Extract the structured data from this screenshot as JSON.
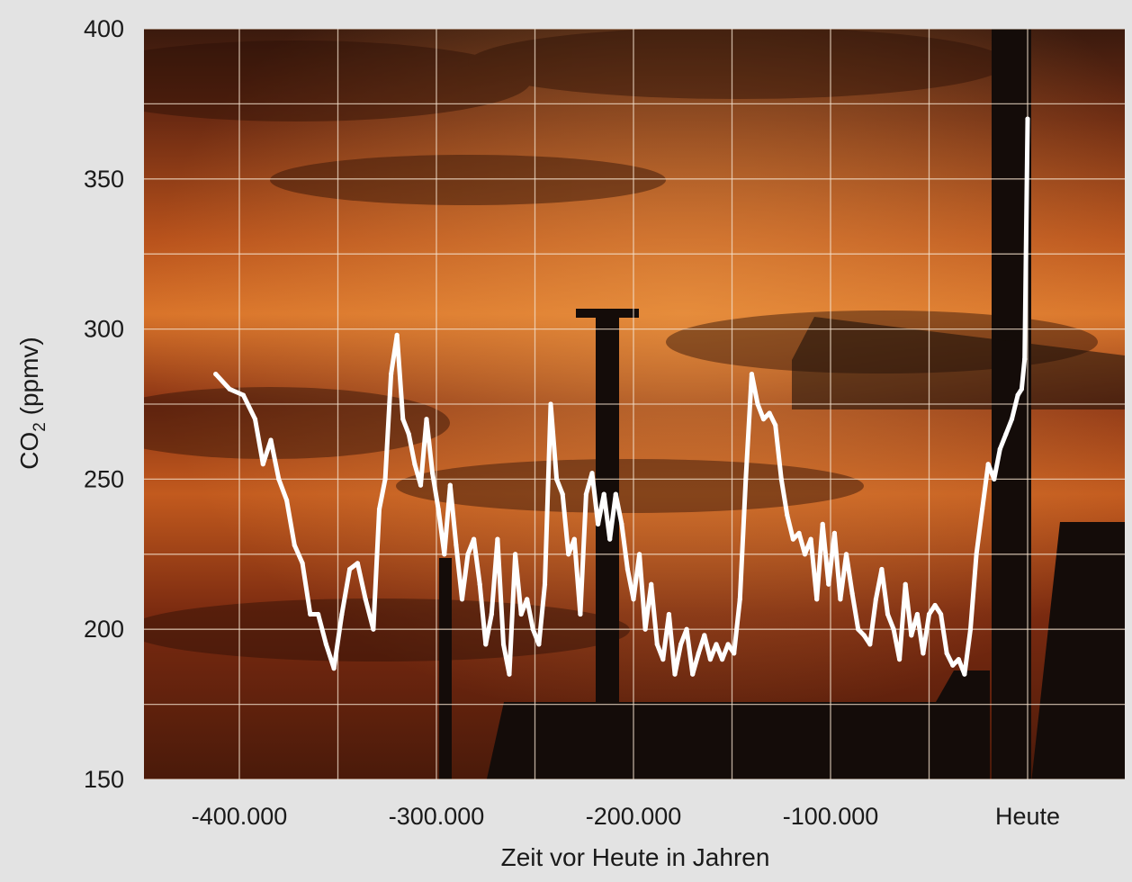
{
  "chart_data": {
    "type": "line",
    "xlabel": "Zeit vor Heute in Jahren",
    "ylabel": "CO2 (ppmv)",
    "ylabel_main": "CO",
    "ylabel_sub": "2",
    "ylabel_unit": " (ppmv)",
    "xlim": [
      -450000,
      40000
    ],
    "ylim": [
      150,
      400
    ],
    "grid": true,
    "x_ticks": [
      {
        "value": -400000,
        "label": "-400.000"
      },
      {
        "value": -300000,
        "label": "-300.000"
      },
      {
        "value": -200000,
        "label": "-200.000"
      },
      {
        "value": -100000,
        "label": "-100.000"
      },
      {
        "value": 0,
        "label": "Heute"
      }
    ],
    "y_ticks": [
      {
        "value": 150,
        "label": "150"
      },
      {
        "value": 200,
        "label": "200"
      },
      {
        "value": 250,
        "label": "250"
      },
      {
        "value": 300,
        "label": "300"
      },
      {
        "value": 350,
        "label": "350"
      },
      {
        "value": 400,
        "label": "400"
      }
    ],
    "colors": {
      "line": "#ffffff",
      "sky_dark": "#2a1208",
      "sky_mid": "#8e2e12",
      "sky_bright": "#d66a24",
      "silhouette": "#140c09",
      "grid": "#f3e0cc"
    },
    "series": [
      {
        "x": [
          -412000,
          -405000,
          -398000,
          -392000,
          -388000,
          -384000,
          -380000,
          -376000,
          -372000,
          -368000,
          -364000,
          -360000,
          -356000,
          -352000,
          -348000,
          -344000,
          -340000,
          -336000,
          -332000,
          -329000,
          -326000,
          -323000,
          -320000,
          -317000,
          -314000,
          -311000,
          -308000,
          -305000,
          -302000,
          -299000,
          -296000,
          -293000,
          -290000,
          -287000,
          -284000,
          -281000,
          -278000,
          -275000,
          -272000,
          -269000,
          -266000,
          -263000,
          -260000,
          -257000,
          -254000,
          -251000,
          -248000,
          -245000,
          -242000,
          -239000,
          -236000,
          -233000,
          -230000,
          -227000,
          -224000,
          -221000,
          -218000,
          -215000,
          -212000,
          -209000,
          -206000,
          -203000,
          -200000,
          -197000,
          -194000,
          -191000,
          -188000,
          -185000,
          -182000,
          -179000,
          -176000,
          -173000,
          -170000,
          -167000,
          -164000,
          -161000,
          -158000,
          -155000,
          -152000,
          -149000,
          -146000,
          -143000,
          -140000,
          -137000,
          -134000,
          -131000,
          -128000,
          -125000,
          -122000,
          -119000,
          -116000,
          -113000,
          -110000,
          -107000,
          -104000,
          -101000,
          -98000,
          -95000,
          -92000,
          -89000,
          -86000,
          -83000,
          -80000,
          -77000,
          -74000,
          -71000,
          -68000,
          -65000,
          -62000,
          -59000,
          -56000,
          -53000,
          -50000,
          -47000,
          -44000,
          -41000,
          -38000,
          -35000,
          -32000,
          -29000,
          -26000,
          -23000,
          -20000,
          -17000,
          -14000,
          -11000,
          -8000,
          -5000,
          -3000,
          -1500,
          0
        ],
        "y": [
          285,
          280,
          278,
          270,
          255,
          263,
          250,
          243,
          228,
          222,
          205,
          205,
          195,
          187,
          205,
          220,
          222,
          210,
          200,
          240,
          250,
          285,
          298,
          270,
          265,
          255,
          248,
          270,
          252,
          240,
          225,
          248,
          228,
          210,
          225,
          230,
          215,
          195,
          205,
          230,
          195,
          185,
          225,
          205,
          210,
          200,
          195,
          215,
          275,
          250,
          245,
          225,
          230,
          205,
          245,
          252,
          235,
          245,
          230,
          245,
          235,
          220,
          210,
          225,
          200,
          215,
          195,
          190,
          205,
          185,
          195,
          200,
          185,
          192,
          198,
          190,
          195,
          190,
          195,
          192,
          210,
          250,
          285,
          275,
          270,
          272,
          268,
          250,
          238,
          230,
          232,
          225,
          230,
          210,
          235,
          215,
          232,
          210,
          225,
          212,
          200,
          198,
          195,
          210,
          220,
          205,
          200,
          190,
          215,
          198,
          205,
          192,
          205,
          208,
          205,
          192,
          188,
          190,
          185,
          200,
          225,
          240,
          255,
          250,
          260,
          265,
          270,
          278,
          280,
          290,
          370
        ]
      }
    ]
  }
}
